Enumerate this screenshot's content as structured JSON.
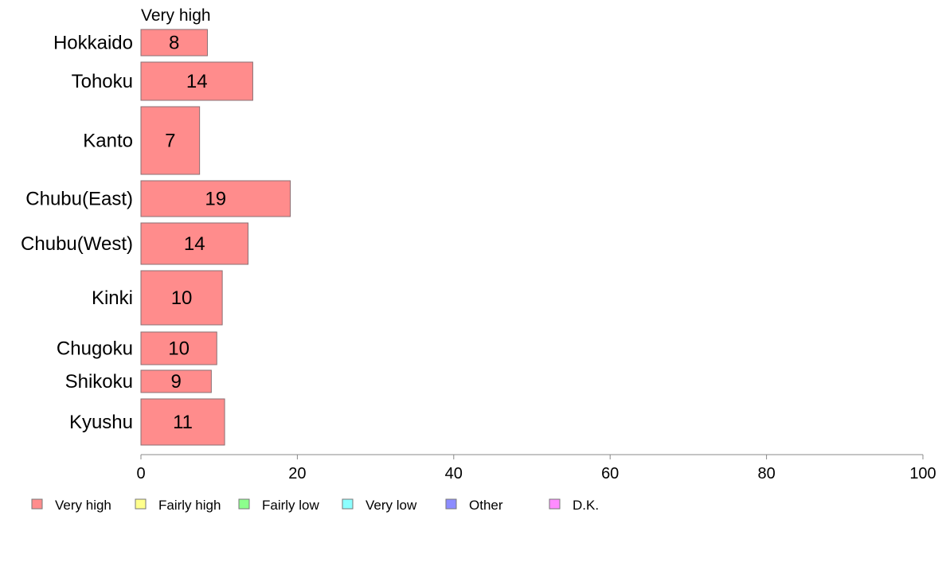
{
  "chart_data": {
    "type": "bar",
    "orientation": "horizontal",
    "stacked": true,
    "series_header": "Very high",
    "categories": [
      "Hokkaido",
      "Tohoku",
      "Kanto",
      "Chubu(East)",
      "Chubu(West)",
      "Kinki",
      "Chugoku",
      "Shikoku",
      "Kyushu"
    ],
    "series": [
      {
        "name": "Very high",
        "color": "#ff8c8c",
        "values": [
          8.5,
          14.3,
          7.5,
          19.1,
          13.7,
          10.4,
          9.7,
          9.0,
          10.7
        ],
        "labels": [
          "8",
          "14",
          "7",
          "19",
          "14",
          "10",
          "10",
          "9",
          "11"
        ]
      }
    ],
    "xlim": [
      0,
      100
    ],
    "xticks": [
      "0",
      "20",
      "40",
      "60",
      "80",
      "100"
    ],
    "legend": [
      {
        "label": "Very high",
        "color": "#ff8c8c"
      },
      {
        "label": "Fairly high",
        "color": "#ffff8c"
      },
      {
        "label": "Fairly low",
        "color": "#8cff8c"
      },
      {
        "label": "Very low",
        "color": "#8cffff"
      },
      {
        "label": "Other",
        "color": "#8c8cff"
      },
      {
        "label": "D.K.",
        "color": "#ff8cff"
      }
    ],
    "legend_position": "bottom",
    "grid": false
  }
}
